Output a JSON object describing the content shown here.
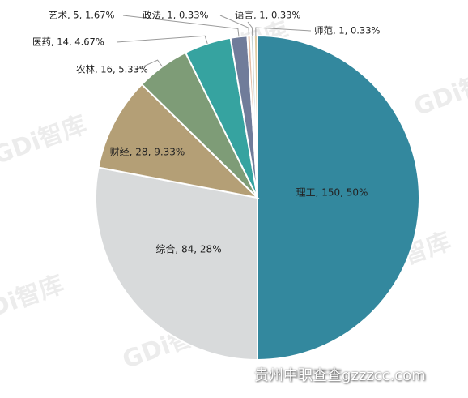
{
  "chart_data": {
    "type": "pie",
    "title": "",
    "slices": [
      {
        "name": "理工",
        "value": 150,
        "percent": "50%",
        "label": "理工, 150, 50%",
        "color": "#33889E"
      },
      {
        "name": "综合",
        "value": 84,
        "percent": "28%",
        "label": "综合, 84, 28%",
        "color": "#D8DADB"
      },
      {
        "name": "财经",
        "value": 28,
        "percent": "9.33%",
        "label": "财经, 28, 9.33%",
        "color": "#B49F76"
      },
      {
        "name": "农林",
        "value": 16,
        "percent": "5.33%",
        "label": "农林, 16, 5.33%",
        "color": "#7E9C77"
      },
      {
        "name": "医药",
        "value": 14,
        "percent": "4.67%",
        "label": "医药, 14, 4.67%",
        "color": "#36A3A0"
      },
      {
        "name": "艺术",
        "value": 5,
        "percent": "1.67%",
        "label": "艺术, 5, 1.67%",
        "color": "#707C9A"
      },
      {
        "name": "政法",
        "value": 1,
        "percent": "0.33%",
        "label": "政法, 1, 0.33%",
        "color": "#E3BFA8"
      },
      {
        "name": "语言",
        "value": 1,
        "percent": "0.33%",
        "label": "语言, 1, 0.33%",
        "color": "#C8D4D2"
      },
      {
        "name": "师范",
        "value": 1,
        "percent": "0.33%",
        "label": "师范, 1, 0.33%",
        "color": "#E2CDA5"
      }
    ],
    "start_angle": "12 o'clock",
    "direction": "clockwise",
    "legend": "none"
  },
  "watermark": {
    "text": "GDi智库"
  },
  "credit": {
    "text": "贵州中职查查gzzzcc.com"
  }
}
